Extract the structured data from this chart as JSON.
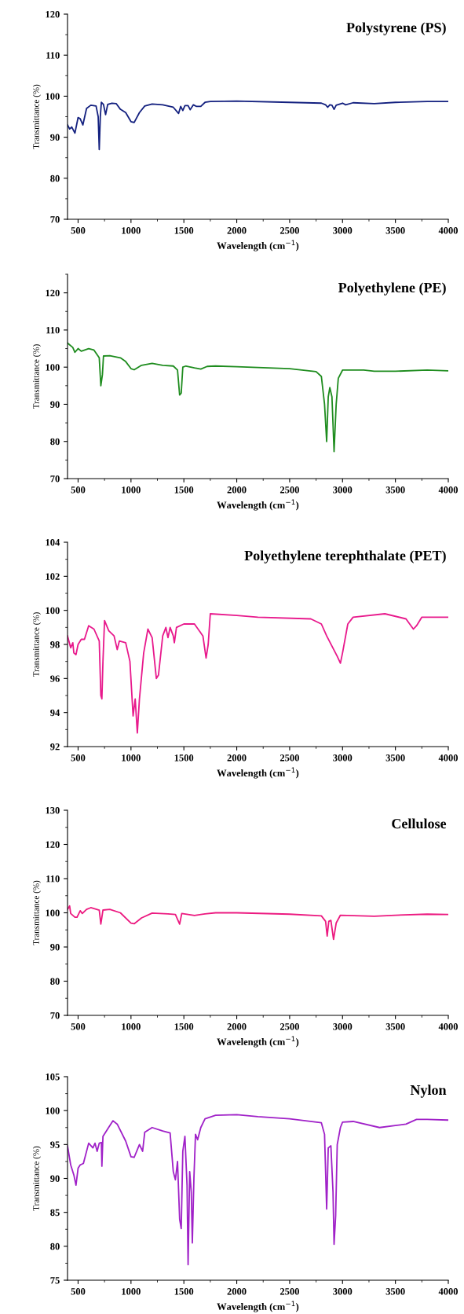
{
  "chart_data": [
    {
      "type": "line",
      "title": "Polystyrene (PS)",
      "xlabel": "Wavelength (cm$^{−1}$)",
      "ylabel": "Transmittance (%)",
      "xlim": [
        400,
        4000
      ],
      "xticks": [
        500,
        1000,
        1500,
        2000,
        2500,
        3000,
        3500,
        4000
      ],
      "ylim": [
        70,
        120
      ],
      "yticks": [
        70,
        80,
        90,
        100,
        110,
        120
      ],
      "grid": false,
      "legend": false,
      "series": [
        {
          "color": "#13207f",
          "x": [
            400,
            420,
            440,
            470,
            500,
            520,
            545,
            580,
            620,
            670,
            690,
            700,
            710,
            720,
            740,
            760,
            780,
            820,
            860,
            900,
            950,
            1000,
            1030,
            1080,
            1130,
            1200,
            1300,
            1400,
            1450,
            1470,
            1490,
            1510,
            1540,
            1560,
            1590,
            1620,
            1660,
            1700,
            1750,
            2000,
            2500,
            2800,
            2840,
            2860,
            2880,
            2900,
            2920,
            2940,
            3000,
            3030,
            3100,
            3300,
            3500,
            3800,
            4000
          ],
          "values": [
            93,
            92,
            92.5,
            91,
            94.8,
            94.5,
            93,
            97,
            97.8,
            97.6,
            95,
            87,
            95,
            98.5,
            98,
            95.5,
            98,
            98.3,
            98.2,
            96.8,
            96,
            93.8,
            93.6,
            96,
            97.6,
            98.1,
            97.9,
            97.3,
            95.8,
            97.5,
            96.5,
            97.7,
            97.7,
            96.7,
            97.9,
            97.5,
            97.5,
            98.5,
            98.7,
            98.8,
            98.5,
            98.3,
            97.9,
            97.3,
            97.9,
            97.8,
            96.8,
            97.8,
            98.3,
            97.9,
            98.4,
            98.2,
            98.5,
            98.7,
            98.7
          ]
        }
      ]
    },
    {
      "type": "line",
      "title": "Polyethylene (PE)",
      "xlabel": "Wavelength (cm$^{−1}$)",
      "ylabel": "Transmittance (%)",
      "xlim": [
        400,
        4000
      ],
      "xticks": [
        500,
        1000,
        1500,
        2000,
        2500,
        3000,
        3500,
        4000
      ],
      "ylim": [
        70,
        125
      ],
      "yticks": [
        70,
        80,
        90,
        100,
        110,
        120
      ],
      "grid": false,
      "legend": false,
      "series": [
        {
          "color": "#1e8c1e",
          "x": [
            400,
            450,
            470,
            500,
            530,
            600,
            650,
            700,
            715,
            730,
            740,
            800,
            900,
            950,
            1000,
            1030,
            1100,
            1200,
            1300,
            1400,
            1440,
            1460,
            1475,
            1490,
            1520,
            1600,
            1660,
            1720,
            1800,
            2000,
            2500,
            2750,
            2800,
            2830,
            2850,
            2865,
            2880,
            2900,
            2920,
            2940,
            2960,
            3000,
            3200,
            3300,
            3500,
            3800,
            4000
          ],
          "values": [
            106.5,
            105.3,
            104,
            105,
            104.3,
            105,
            104.6,
            102.5,
            95,
            98,
            103,
            103.1,
            102.5,
            101.5,
            99.6,
            99.3,
            100.5,
            101,
            100.5,
            100.3,
            99.2,
            92.5,
            93,
            100,
            100.3,
            99.8,
            99.5,
            100.2,
            100.3,
            100.1,
            99.6,
            98.8,
            97.5,
            90,
            80,
            92,
            94.5,
            92,
            77.3,
            90,
            97,
            99.2,
            99.2,
            98.9,
            98.9,
            99.2,
            99
          ]
        }
      ]
    },
    {
      "type": "line",
      "title": "Polyethylene terephthalate (PET)",
      "xlabel": "Wavelength (cm$^{−1}$)",
      "ylabel": "Transmittance (%)",
      "xlim": [
        400,
        4000
      ],
      "xticks": [
        500,
        1000,
        1500,
        2000,
        2500,
        3000,
        3500,
        4000
      ],
      "ylim": [
        92,
        104
      ],
      "yticks": [
        92,
        94,
        96,
        98,
        100,
        102,
        104
      ],
      "grid": false,
      "legend": false,
      "series": [
        {
          "color": "#e8198c",
          "x": [
            400,
            430,
            450,
            460,
            480,
            500,
            530,
            560,
            600,
            650,
            700,
            715,
            725,
            735,
            750,
            790,
            840,
            870,
            890,
            950,
            990,
            1020,
            1040,
            1060,
            1080,
            1120,
            1160,
            1200,
            1240,
            1260,
            1300,
            1330,
            1350,
            1370,
            1400,
            1410,
            1430,
            1500,
            1600,
            1680,
            1710,
            1730,
            1750,
            2000,
            2200,
            2700,
            2800,
            2850,
            2950,
            2980,
            3000,
            3050,
            3100,
            3400,
            3600,
            3670,
            3700,
            3750,
            4000
          ],
          "values": [
            98.5,
            97.8,
            98.1,
            97.5,
            97.4,
            98.0,
            98.3,
            98.3,
            99.1,
            98.9,
            98.2,
            95,
            94.8,
            97,
            99.4,
            98.8,
            98.5,
            97.7,
            98.2,
            98.1,
            97,
            93.8,
            94.8,
            92.8,
            94.8,
            97.5,
            98.9,
            98.4,
            96,
            96.2,
            98.5,
            99,
            98.4,
            99,
            98.5,
            98.1,
            99,
            99.2,
            99.2,
            98.5,
            97.2,
            98,
            99.8,
            99.7,
            99.6,
            99.5,
            99.2,
            98.5,
            97.3,
            96.9,
            97.5,
            99.2,
            99.6,
            99.8,
            99.5,
            98.9,
            99.1,
            99.6,
            99.6
          ]
        }
      ]
    },
    {
      "type": "line",
      "title": "Cellulose",
      "xlabel": "Wavelength (cm$^{−1}$)",
      "ylabel": "Transmittance (%)",
      "xlim": [
        400,
        4000
      ],
      "xticks": [
        500,
        1000,
        1500,
        2000,
        2500,
        3000,
        3500,
        4000
      ],
      "ylim": [
        70,
        130
      ],
      "yticks": [
        70,
        80,
        90,
        100,
        110,
        120,
        130
      ],
      "grid": false,
      "legend": false,
      "series": [
        {
          "color": "#ec1a80",
          "x": [
            400,
            420,
            430,
            470,
            490,
            520,
            540,
            580,
            620,
            700,
            715,
            735,
            800,
            900,
            1000,
            1030,
            1100,
            1200,
            1350,
            1420,
            1460,
            1480,
            1600,
            1700,
            1800,
            2000,
            2500,
            2800,
            2840,
            2855,
            2870,
            2890,
            2915,
            2940,
            2980,
            3300,
            3500,
            3800,
            4000
          ],
          "values": [
            101,
            102,
            99.8,
            98.7,
            98.7,
            100.6,
            99.8,
            101,
            101.5,
            100.8,
            96.7,
            100.8,
            101,
            100,
            97,
            96.8,
            98.5,
            99.9,
            99.7,
            99.5,
            96.7,
            99.8,
            99.2,
            99.7,
            100,
            100,
            99.6,
            99.1,
            97.5,
            93.2,
            97.5,
            97.8,
            92.2,
            97,
            99.3,
            99,
            99.3,
            99.6,
            99.5
          ]
        }
      ]
    },
    {
      "type": "line",
      "title": "Nylon",
      "xlabel": "Wavelength (cm$^{−1}$)",
      "ylabel": "Transmittance (%)",
      "xlim": [
        400,
        4000
      ],
      "xticks": [
        500,
        1000,
        1500,
        2000,
        2500,
        3000,
        3500,
        4000
      ],
      "ylim": [
        75,
        105
      ],
      "yticks": [
        75,
        80,
        85,
        90,
        95,
        100,
        105
      ],
      "grid": false,
      "legend": false,
      "series": [
        {
          "color": "#a021c8",
          "x": [
            400,
            430,
            460,
            480,
            500,
            520,
            550,
            600,
            640,
            660,
            680,
            700,
            720,
            725,
            735,
            780,
            830,
            870,
            950,
            1000,
            1030,
            1080,
            1110,
            1130,
            1200,
            1300,
            1370,
            1400,
            1420,
            1440,
            1460,
            1475,
            1490,
            1510,
            1530,
            1540,
            1555,
            1570,
            1580,
            1595,
            1610,
            1630,
            1660,
            1700,
            1800,
            2000,
            2200,
            2500,
            2800,
            2830,
            2850,
            2865,
            2890,
            2910,
            2920,
            2935,
            2950,
            2980,
            3000,
            3100,
            3350,
            3500,
            3600,
            3700,
            3800,
            4000
          ],
          "values": [
            94.8,
            92,
            90.5,
            89,
            91.5,
            92,
            92.2,
            95.2,
            94.5,
            95.2,
            94,
            95.2,
            95.3,
            91.8,
            96.2,
            97.3,
            98.5,
            98,
            95.5,
            93.2,
            93.1,
            95,
            94,
            96.8,
            97.5,
            97,
            96.7,
            91,
            89.8,
            92.5,
            84,
            82.6,
            94,
            96.2,
            89,
            77.3,
            91,
            88,
            80.5,
            90,
            96.5,
            95.7,
            97.5,
            98.8,
            99.3,
            99.4,
            99.1,
            98.8,
            98.2,
            96.5,
            85.5,
            94.5,
            94.8,
            88,
            80.3,
            84.5,
            95,
            97.5,
            98.3,
            98.4,
            97.5,
            97.8,
            98,
            98.7,
            98.7,
            98.6
          ]
        }
      ]
    }
  ]
}
